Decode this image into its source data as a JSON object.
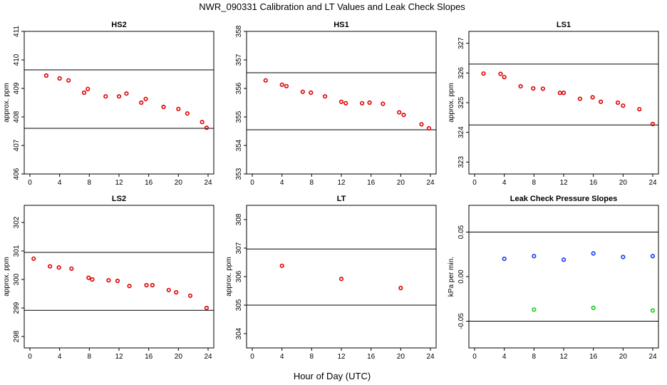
{
  "figure": {
    "title": "NWR_090331  Calibration and LT Values and Leak Check Slopes",
    "xlabel": "Hour of Day (UTC)"
  },
  "chart_data": [
    {
      "type": "scatter",
      "title": "HS2",
      "ylabel": "approx. ppm",
      "xlim": [
        0,
        24
      ],
      "ylim": [
        406,
        411
      ],
      "xticks": [
        "0",
        "4",
        "8",
        "12",
        "16",
        "20",
        "24"
      ],
      "yticks": [
        "406",
        "407",
        "408",
        "409",
        "410",
        "411"
      ],
      "hlines": [
        409.65,
        407.6
      ],
      "series": [
        {
          "name": "HS2",
          "color": "#e00000",
          "x": [
            2.2,
            4.0,
            5.2,
            7.3,
            7.8,
            10.2,
            12.0,
            13.0,
            15.0,
            15.6,
            18.0,
            20.0,
            21.2,
            23.2,
            23.8
          ],
          "y": [
            409.45,
            409.35,
            409.28,
            408.85,
            408.98,
            408.72,
            408.72,
            408.82,
            408.5,
            408.63,
            408.35,
            408.28,
            408.12,
            407.82,
            407.62
          ]
        }
      ]
    },
    {
      "type": "scatter",
      "title": "HS1",
      "ylabel": "",
      "xlim": [
        0,
        24
      ],
      "ylim": [
        353,
        358
      ],
      "xticks": [
        "0",
        "4",
        "8",
        "12",
        "16",
        "20",
        "24"
      ],
      "yticks": [
        "353",
        "354",
        "355",
        "356",
        "357",
        "358"
      ],
      "hlines": [
        356.55,
        354.55
      ],
      "series": [
        {
          "name": "HS1",
          "color": "#e00000",
          "x": [
            1.8,
            4.0,
            4.6,
            6.8,
            7.9,
            9.8,
            12.0,
            12.6,
            14.8,
            15.8,
            17.6,
            19.8,
            20.4,
            22.8,
            23.8
          ],
          "y": [
            356.28,
            356.13,
            356.08,
            355.88,
            355.85,
            355.72,
            355.53,
            355.48,
            355.48,
            355.5,
            355.46,
            355.16,
            355.07,
            354.74,
            354.6
          ]
        }
      ]
    },
    {
      "type": "scatter",
      "title": "LS1",
      "ylabel": "approx. ppm",
      "xlim": [
        0,
        24
      ],
      "ylim": [
        322.6,
        327.4
      ],
      "xticks": [
        "0",
        "4",
        "8",
        "12",
        "16",
        "20",
        "24"
      ],
      "yticks": [
        "323",
        "324",
        "325",
        "326",
        "327"
      ],
      "hlines": [
        326.3,
        324.25
      ],
      "series": [
        {
          "name": "LS1",
          "color": "#e00000",
          "x": [
            1.2,
            3.5,
            4.0,
            6.2,
            7.9,
            9.2,
            11.5,
            12.0,
            14.2,
            15.9,
            17.0,
            19.3,
            20.0,
            22.2,
            24.0
          ],
          "y": [
            325.98,
            325.97,
            325.86,
            325.55,
            325.48,
            325.47,
            325.33,
            325.33,
            325.13,
            325.18,
            325.03,
            325.0,
            324.9,
            324.78,
            324.28
          ]
        }
      ]
    },
    {
      "type": "scatter",
      "title": "LS2",
      "ylabel": "approx. ppm",
      "xlim": [
        0,
        24
      ],
      "ylim": [
        297.6,
        302.6
      ],
      "xticks": [
        "0",
        "4",
        "8",
        "12",
        "16",
        "20",
        "24"
      ],
      "yticks": [
        "298",
        "299",
        "300",
        "301",
        "302"
      ],
      "hlines": [
        300.95,
        298.92
      ],
      "series": [
        {
          "name": "LS2",
          "color": "#e00000",
          "x": [
            0.5,
            2.7,
            3.9,
            5.6,
            7.9,
            8.4,
            10.6,
            11.8,
            13.4,
            15.7,
            16.5,
            18.7,
            19.7,
            21.6,
            23.8
          ],
          "y": [
            300.73,
            300.46,
            300.42,
            300.38,
            300.06,
            300.0,
            299.97,
            299.95,
            299.77,
            299.8,
            299.8,
            299.63,
            299.55,
            299.43,
            299.0
          ]
        }
      ]
    },
    {
      "type": "scatter",
      "title": "LT",
      "ylabel": "approx. ppm",
      "xlim": [
        0,
        24
      ],
      "ylim": [
        303.5,
        308.5
      ],
      "xticks": [
        "0",
        "4",
        "8",
        "12",
        "16",
        "20",
        "24"
      ],
      "yticks": [
        "304",
        "305",
        "306",
        "307",
        "308"
      ],
      "hlines": [
        306.97,
        305.0
      ],
      "series": [
        {
          "name": "LT",
          "color": "#e00000",
          "x": [
            4.0,
            12.0,
            20.0
          ],
          "y": [
            306.38,
            305.92,
            305.6
          ]
        }
      ]
    },
    {
      "type": "scatter",
      "title": "Leak Check Pressure Slopes",
      "ylabel": "kPa per min.",
      "xlim": [
        0,
        24
      ],
      "ylim": [
        -0.08,
        0.08
      ],
      "xticks": [
        "0",
        "4",
        "8",
        "12",
        "16",
        "20",
        "24"
      ],
      "yticks": [
        "-0.05",
        "0.00",
        "0.05"
      ],
      "hlines": [
        0.05,
        -0.05
      ],
      "series": [
        {
          "name": "blue",
          "color": "#1e3ce6",
          "x": [
            4.0,
            8.0,
            12.0,
            16.0,
            20.0,
            24.0
          ],
          "y": [
            0.02,
            0.023,
            0.019,
            0.026,
            0.022,
            0.023
          ]
        },
        {
          "name": "green",
          "color": "#19c819",
          "x": [
            8.0,
            16.0,
            24.0
          ],
          "y": [
            -0.037,
            -0.035,
            -0.038
          ]
        }
      ]
    }
  ]
}
